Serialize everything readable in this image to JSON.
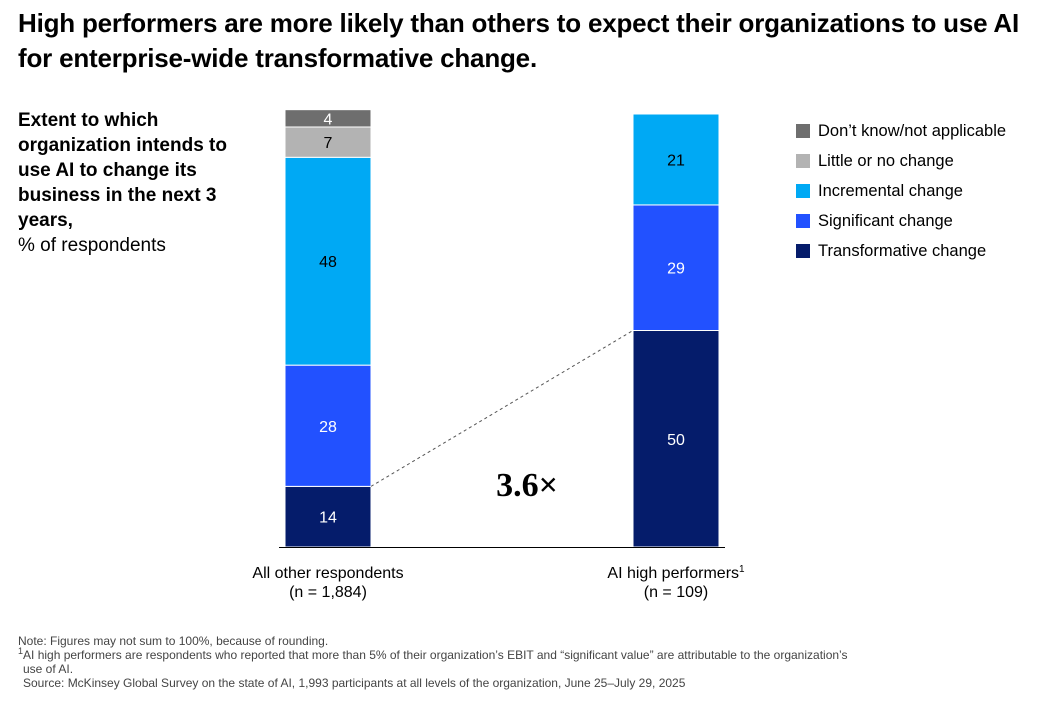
{
  "title": "High performers are more likely than others to expect their organizations to use AI for enterprise-wide transformative change.",
  "subtitle_bold": "Extent to which organization intends to use AI to change its business in the next 3 years,",
  "subtitle_unit": "% of respondents",
  "legend": [
    {
      "label": "Don’t know/not applicable",
      "color": "#6e6e6e"
    },
    {
      "label": "Little or no change",
      "color": "#b3b3b3"
    },
    {
      "label": "Incremental change",
      "color": "#00a9f4"
    },
    {
      "label": "Significant change",
      "color": "#2251ff"
    },
    {
      "label": "Transformative change",
      "color": "#051c6b"
    }
  ],
  "chart_data": {
    "type": "bar",
    "stacked": true,
    "categories": [
      "All other respondents",
      "AI high performers"
    ],
    "category_sublabels": [
      "(n = 1,884)",
      "(n = 109)"
    ],
    "category_footnotes": [
      "",
      "1"
    ],
    "series": [
      {
        "name": "Transformative change",
        "color": "#051c6b",
        "values": [
          14,
          50
        ]
      },
      {
        "name": "Significant change",
        "color": "#2251ff",
        "values": [
          28,
          29
        ]
      },
      {
        "name": "Incremental change",
        "color": "#00a9f4",
        "values": [
          48,
          21
        ]
      },
      {
        "name": "Little or no change",
        "color": "#b3b3b3",
        "values": [
          7,
          null
        ]
      },
      {
        "name": "Don’t know/not applicable",
        "color": "#6e6e6e",
        "values": [
          4,
          null
        ]
      }
    ],
    "ylim": [
      0,
      100
    ],
    "annotation": "3.6×",
    "grid": false,
    "legend_position": "right"
  },
  "notes": {
    "note": "Note: Figures may not sum to 100%, because of rounding.",
    "footnote_marker": "1",
    "footnote_line1": "AI high performers are respondents who reported that more than 5% of their organization’s EBIT and “significant value” are attributable to the organization’s",
    "footnote_line2": "use of AI.",
    "source": "Source: McKinsey Global Survey on the state of AI, 1,993 participants at all levels of the organization, June 25–July 29, 2025"
  }
}
